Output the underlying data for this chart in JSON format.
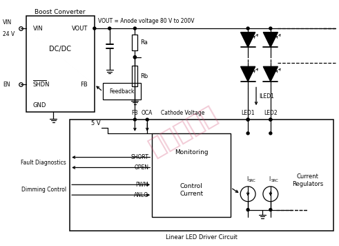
{
  "background_color": "#ffffff",
  "boost_label": "Boost Converter",
  "dc_dc_label": "DC/DC",
  "vin_label": "VIN",
  "vout_label": "VOUT",
  "shdn_label": "SHDN",
  "fb_label_inside": "FB",
  "gnd_label": "GND",
  "vin_input": "VIN\n24 V",
  "en_input": "EN",
  "vout_line_label": "VOUT = Anode voltage 80 V to 200V",
  "ra_label": "Ra",
  "rb_label": "Rb",
  "feedback_label": "Feedback",
  "fb_pin_label": "FB",
  "oca_label": "OCA",
  "cathode_label": "Cathode Voltage",
  "iled1_label": "ILED1",
  "led1_label": "LED1",
  "led2_label": "LED2",
  "linear_label": "Linear LED Driver Circuit",
  "v5_label": "5 V",
  "monitoring_label": "Monitoring",
  "control_label": "Control\nCurrent",
  "short_label": "SHORT",
  "open_label": "OPEN",
  "pwm_label": "PWM",
  "anlg_label": "ANLG",
  "fault_label": "Fault Diagnostics",
  "dimming_label": "Dimming Control",
  "current_reg_label": "Current\nRegulators",
  "isrc_label1": "I",
  "isrc_label1_sub": "SRC",
  "isrc_label2": "I",
  "isrc_label2_sub": "SRC",
  "text_color": "#000000",
  "line_color": "#000000",
  "watermark_text": "电子家设计"
}
